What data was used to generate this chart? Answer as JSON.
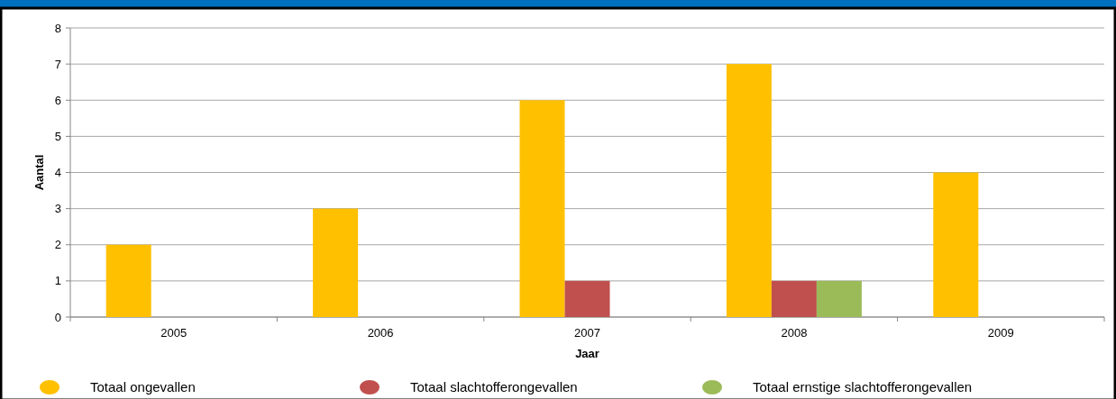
{
  "chart_data": {
    "type": "bar",
    "xlabel": "Jaar",
    "ylabel": "Aantal",
    "categories": [
      "2005",
      "2006",
      "2007",
      "2008",
      "2009"
    ],
    "series": [
      {
        "name": "Totaal ongevallen",
        "color": "#ffc000",
        "values": [
          2,
          3,
          6,
          7,
          4
        ]
      },
      {
        "name": "Totaal slachtofferongevallen",
        "color": "#c0504d",
        "values": [
          0,
          0,
          1,
          1,
          0
        ]
      },
      {
        "name": "Totaal ernstige slachtofferongevallen",
        "color": "#9bbb59",
        "values": [
          0,
          0,
          0,
          1,
          0
        ]
      }
    ],
    "ylim": [
      0,
      8
    ],
    "yticks": [
      0,
      1,
      2,
      3,
      4,
      5,
      6,
      7,
      8
    ],
    "grid": "y",
    "legend": "bottom"
  }
}
